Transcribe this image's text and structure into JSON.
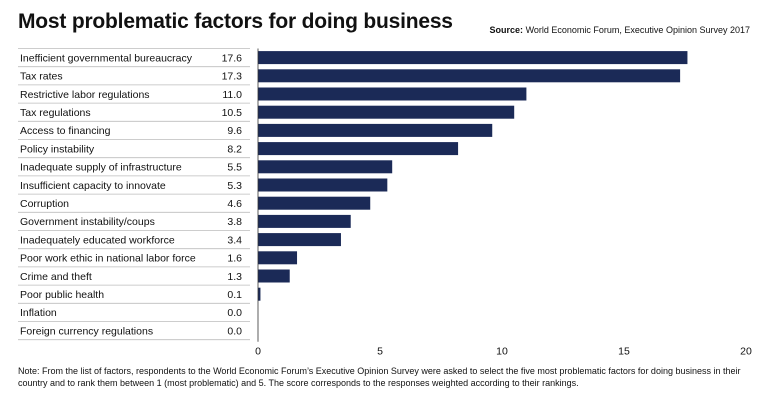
{
  "header": {
    "title": "Most problematic factors for doing business",
    "source_label": "Source:",
    "source_text": "World Economic Forum, Executive Opinion Survey 2017"
  },
  "note": "Note: From the list of factors, respondents to the World Economic Forum’s Executive Opinion Survey were asked to select the five most problematic factors for doing business in their country and to rank them between 1 (most problematic) and 5. The score corresponds to the responses weighted according to their rankings.",
  "colors": {
    "bar": "#1b2a57",
    "rule": "#bdbdbd",
    "axis": "#333333"
  },
  "chart_data": {
    "type": "bar",
    "orientation": "horizontal",
    "categories": [
      "Inefficient governmental bureaucracy",
      "Tax rates",
      "Restrictive labor regulations",
      "Tax regulations",
      "Access to financing",
      "Policy instability",
      "Inadequate supply of infrastructure",
      "Insufficient capacity to innovate",
      "Corruption",
      "Government instability/coups",
      "Inadequately educated workforce",
      "Poor work ethic in national labor force",
      "Crime and theft",
      "Poor public health",
      "Inflation",
      "Foreign currency regulations"
    ],
    "values": [
      17.6,
      17.3,
      11.0,
      10.5,
      9.6,
      8.2,
      5.5,
      5.3,
      4.6,
      3.8,
      3.4,
      1.6,
      1.3,
      0.1,
      0.0,
      0.0
    ],
    "value_labels": [
      "17.6",
      "17.3",
      "11.0",
      "10.5",
      "9.6",
      "8.2",
      "5.5",
      "5.3",
      "4.6",
      "3.8",
      "3.4",
      "1.6",
      "1.3",
      "0.1",
      "0.0",
      "0.0"
    ],
    "xlim": [
      0,
      20
    ],
    "xticks": [
      0,
      5,
      10,
      15,
      20
    ],
    "grid": false,
    "legend": "none"
  }
}
